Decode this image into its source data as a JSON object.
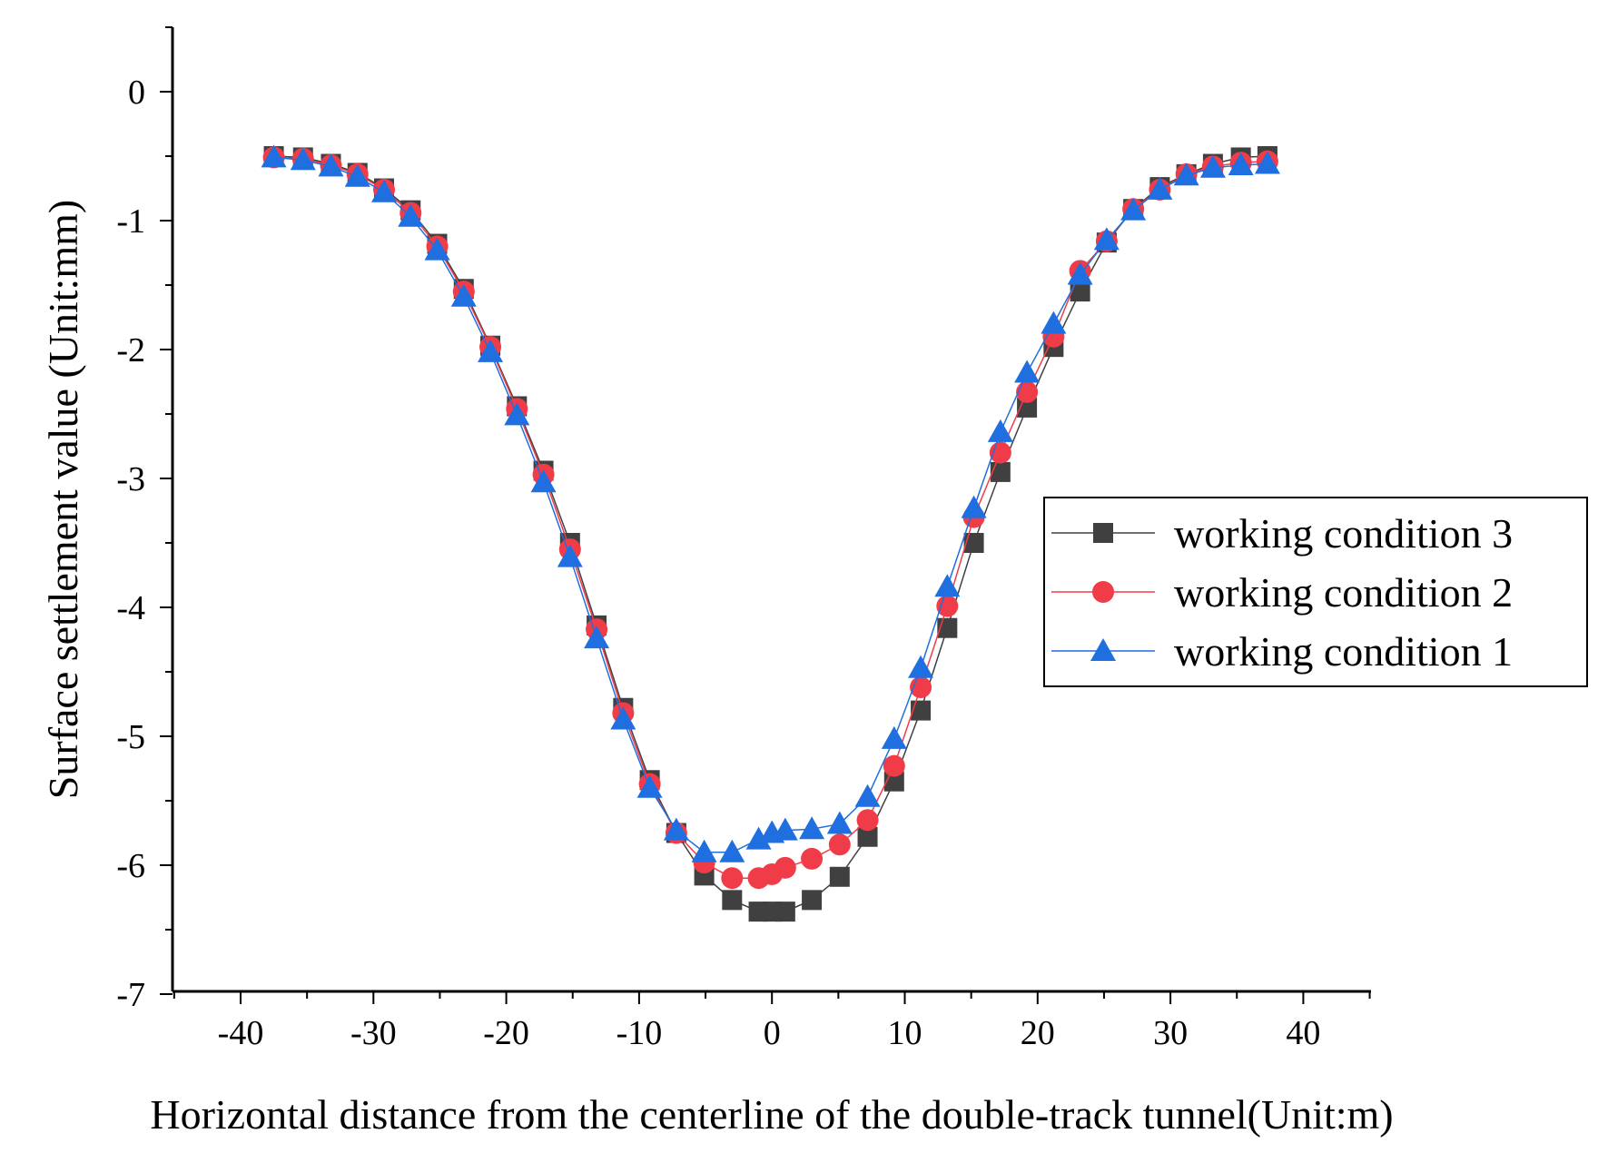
{
  "chart_data": {
    "type": "line",
    "title": "",
    "xlabel": "Horizontal distance from the centerline of the double-track tunnel(Unit:m)",
    "ylabel": "Surface settlement value (Unit:mm)",
    "xlim": [
      -45,
      45
    ],
    "ylim": [
      -7,
      0.5
    ],
    "xticks": [
      -40,
      -30,
      -20,
      -10,
      0,
      10,
      20,
      30,
      40
    ],
    "yticks": [
      0,
      -1,
      -2,
      -3,
      -4,
      -5,
      -6,
      -7
    ],
    "xtick_labels": [
      "-40",
      "-30",
      "-20",
      "-10",
      "0",
      "10",
      "20",
      "30",
      "40"
    ],
    "ytick_labels": [
      "0",
      "-1",
      "-2",
      "-3",
      "-4",
      "-5",
      "-6",
      "-7"
    ],
    "legend_position": "right",
    "series": [
      {
        "name": "working condition 3",
        "color": "#404040",
        "marker": "square",
        "x": [
          -37.5,
          -35.3,
          -33.2,
          -31.2,
          -29.2,
          -27.2,
          -25.2,
          -23.2,
          -21.2,
          -19.2,
          -17.2,
          -15.2,
          -13.2,
          -11.2,
          -9.2,
          -7.2,
          -5.1,
          -3.0,
          -1.0,
          0.0,
          1.0,
          3.0,
          5.1,
          7.2,
          9.2,
          11.2,
          13.2,
          15.2,
          17.2,
          19.2,
          21.2,
          23.2,
          25.2,
          27.2,
          29.2,
          31.2,
          33.2,
          35.3,
          37.3
        ],
        "y": [
          -0.5,
          -0.51,
          -0.56,
          -0.63,
          -0.75,
          -0.92,
          -1.18,
          -1.53,
          -1.97,
          -2.44,
          -2.94,
          -3.5,
          -4.14,
          -4.78,
          -5.34,
          -5.75,
          -6.08,
          -6.27,
          -6.36,
          -6.36,
          -6.36,
          -6.27,
          -6.09,
          -5.78,
          -5.35,
          -4.8,
          -4.16,
          -3.5,
          -2.95,
          -2.45,
          -1.98,
          -1.55,
          -1.17,
          -0.91,
          -0.74,
          -0.64,
          -0.56,
          -0.51,
          -0.5
        ]
      },
      {
        "name": "working condition 2",
        "color": "#f03c48",
        "marker": "circle",
        "x": [
          -37.5,
          -35.3,
          -33.2,
          -31.2,
          -29.2,
          -27.2,
          -25.2,
          -23.2,
          -21.2,
          -19.2,
          -17.2,
          -15.2,
          -13.2,
          -11.2,
          -9.2,
          -7.2,
          -5.1,
          -3.0,
          -1.0,
          0.0,
          1.0,
          3.0,
          5.1,
          7.2,
          9.2,
          11.2,
          13.2,
          15.2,
          17.2,
          19.2,
          21.2,
          23.2,
          25.2,
          27.2,
          29.2,
          31.2,
          33.2,
          35.3,
          37.3
        ],
        "y": [
          -0.51,
          -0.52,
          -0.57,
          -0.64,
          -0.76,
          -0.94,
          -1.2,
          -1.55,
          -1.98,
          -2.46,
          -2.97,
          -3.55,
          -4.17,
          -4.82,
          -5.37,
          -5.75,
          -5.98,
          -6.1,
          -6.1,
          -6.07,
          -6.02,
          -5.95,
          -5.84,
          -5.65,
          -5.23,
          -4.62,
          -3.99,
          -3.3,
          -2.8,
          -2.33,
          -1.9,
          -1.39,
          -1.16,
          -0.91,
          -0.76,
          -0.64,
          -0.58,
          -0.55,
          -0.54
        ]
      },
      {
        "name": "working condition 1",
        "color": "#1f6fe0",
        "marker": "triangle",
        "x": [
          -37.5,
          -35.3,
          -33.2,
          -31.2,
          -29.2,
          -27.2,
          -25.2,
          -23.2,
          -21.2,
          -19.2,
          -17.2,
          -15.2,
          -13.2,
          -11.2,
          -9.2,
          -7.2,
          -5.1,
          -3.0,
          -1.0,
          0.0,
          1.0,
          3.0,
          5.1,
          7.2,
          9.2,
          11.2,
          13.2,
          15.2,
          17.2,
          19.2,
          21.2,
          23.2,
          25.2,
          27.2,
          29.2,
          31.2,
          33.2,
          35.3,
          37.3
        ],
        "y": [
          -0.51,
          -0.53,
          -0.58,
          -0.66,
          -0.78,
          -0.97,
          -1.23,
          -1.59,
          -2.02,
          -2.51,
          -3.03,
          -3.61,
          -4.24,
          -4.87,
          -5.4,
          -5.73,
          -5.9,
          -5.9,
          -5.8,
          -5.75,
          -5.73,
          -5.72,
          -5.68,
          -5.47,
          -5.02,
          -4.47,
          -3.84,
          -3.23,
          -2.64,
          -2.18,
          -1.8,
          -1.42,
          -1.15,
          -0.92,
          -0.76,
          -0.65,
          -0.59,
          -0.57,
          -0.56
        ]
      }
    ]
  }
}
